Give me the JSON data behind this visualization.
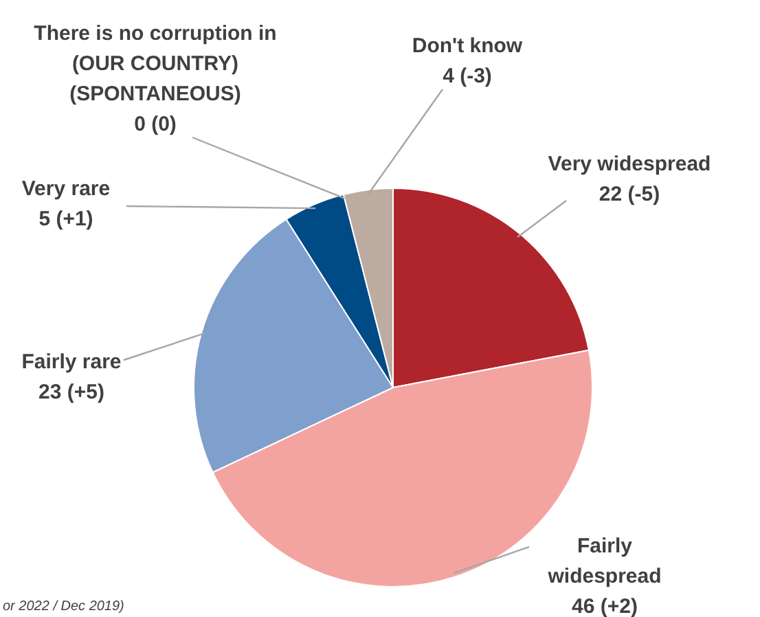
{
  "chart_data": {
    "type": "pie",
    "categories": [
      "Very widespread",
      "Fairly widespread",
      "Fairly rare",
      "Very rare",
      "There is no corruption in (OUR COUNTRY) (SPONTANEOUS)",
      "Don't know"
    ],
    "values": [
      22,
      46,
      23,
      5,
      0,
      4
    ],
    "colors": [
      "#b0242b",
      "#f4a4a0",
      "#7f9fcc",
      "#004a86",
      "#a6a6a6",
      "#bcaba0"
    ],
    "value_labels": [
      "22 (-5)",
      "46 (+2)",
      "23 (+5)",
      "5 (+1)",
      "0 (0)",
      "4 (-3)"
    ],
    "annotations": [
      "or 2022 / Dec 2019)"
    ],
    "legend": false
  }
}
